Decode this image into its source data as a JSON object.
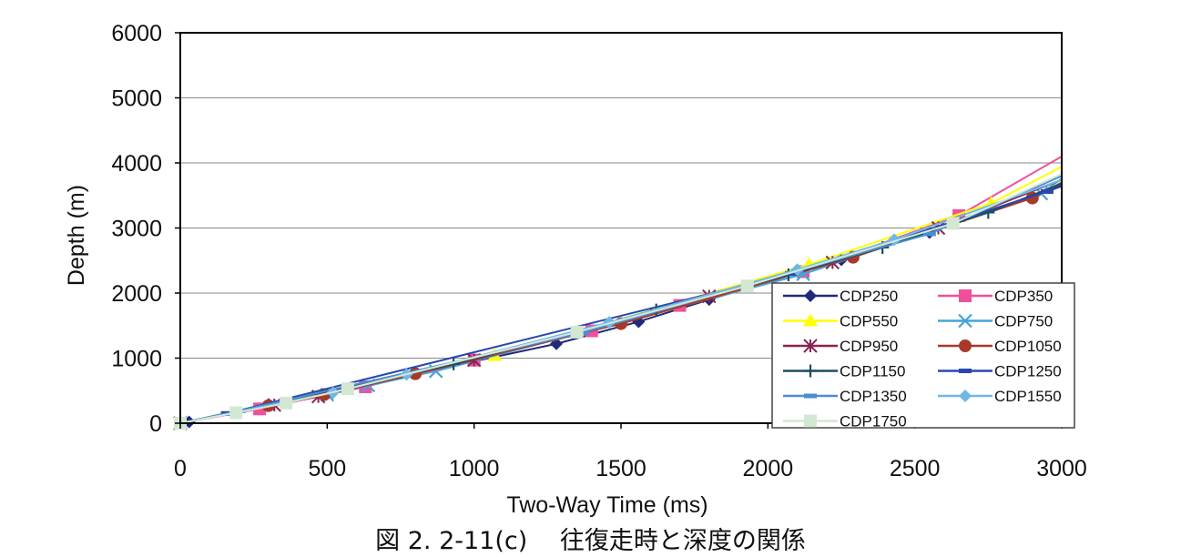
{
  "caption": "図 2. 2-11(c)　 往復走時と深度の関係",
  "chart_data": {
    "type": "line",
    "xlabel": "Two-Way Time (ms)",
    "ylabel": "Depth (m)",
    "xlim": [
      0,
      3000
    ],
    "ylim": [
      0,
      6000
    ],
    "xticks": [
      "0",
      "500",
      "1000",
      "1500",
      "2000",
      "2500",
      "3000"
    ],
    "yticks": [
      "0",
      "1000",
      "2000",
      "3000",
      "4000",
      "5000",
      "6000"
    ],
    "grid": "horizontal",
    "legend_position": "bottom-right",
    "series": [
      {
        "name": "CDP250",
        "color": "#1f2a7a",
        "marker": "diamond",
        "x": [
          0,
          30,
          1280,
          1560,
          1800,
          2250,
          2550,
          3000
        ],
        "y": [
          0,
          20,
          1220,
          1560,
          1900,
          2510,
          2930,
          3650
        ]
      },
      {
        "name": "CDP350",
        "color": "#f0509a",
        "marker": "square",
        "x": [
          0,
          270,
          630,
          1000,
          1400,
          1700,
          2120,
          2650,
          3000
        ],
        "y": [
          0,
          220,
          560,
          970,
          1420,
          1810,
          2330,
          3190,
          4100
        ]
      },
      {
        "name": "CDP550",
        "color": "#ffff00",
        "marker": "triangle",
        "x": [
          0,
          1070,
          2140,
          2760,
          3000
        ],
        "y": [
          0,
          1040,
          2440,
          3380,
          3940
        ]
      },
      {
        "name": "CDP750",
        "color": "#45a3d8",
        "marker": "x",
        "x": [
          0,
          500,
          640,
          870,
          2120,
          2930,
          3000
        ],
        "y": [
          0,
          440,
          580,
          800,
          2290,
          3530,
          3760
        ]
      },
      {
        "name": "CDP950",
        "color": "#8b2252",
        "marker": "asterisk",
        "x": [
          0,
          320,
          470,
          1000,
          1800,
          2220,
          2580,
          3000
        ],
        "y": [
          0,
          280,
          410,
          970,
          1950,
          2470,
          3000,
          3740
        ]
      },
      {
        "name": "CDP1050",
        "color": "#a8392a",
        "marker": "circle",
        "x": [
          0,
          300,
          490,
          800,
          1500,
          2290,
          2900,
          3000
        ],
        "y": [
          0,
          270,
          440,
          760,
          1530,
          2550,
          3460,
          3700
        ]
      },
      {
        "name": "CDP1150",
        "color": "#1a4f5f",
        "marker": "plus",
        "x": [
          0,
          930,
          1620,
          2070,
          2390,
          2750,
          3000
        ],
        "y": [
          0,
          910,
          1740,
          2280,
          2700,
          3240,
          3680
        ]
      },
      {
        "name": "CDP1250",
        "color": "#2a46b0",
        "marker": "dash",
        "x": [
          0,
          160,
          2080,
          2950,
          3000
        ],
        "y": [
          0,
          150,
          2300,
          3560,
          3640
        ]
      },
      {
        "name": "CDP1350",
        "color": "#4a8ed0",
        "marker": "dash",
        "x": [
          0,
          200,
          1370,
          2100,
          2550,
          3000
        ],
        "y": [
          0,
          190,
          1390,
          2340,
          2910,
          3800
        ]
      },
      {
        "name": "CDP1550",
        "color": "#6fb8e6",
        "marker": "diamond",
        "x": [
          0,
          520,
          770,
          1460,
          2100,
          2430,
          3000
        ],
        "y": [
          0,
          470,
          750,
          1550,
          2360,
          2820,
          3740
        ]
      },
      {
        "name": "CDP1750",
        "color": "#d3e8d3",
        "marker": "square",
        "x": [
          0,
          190,
          360,
          570,
          1350,
          1930,
          2630,
          3000
        ],
        "y": [
          0,
          160,
          310,
          530,
          1400,
          2110,
          3070,
          3830
        ]
      }
    ]
  }
}
